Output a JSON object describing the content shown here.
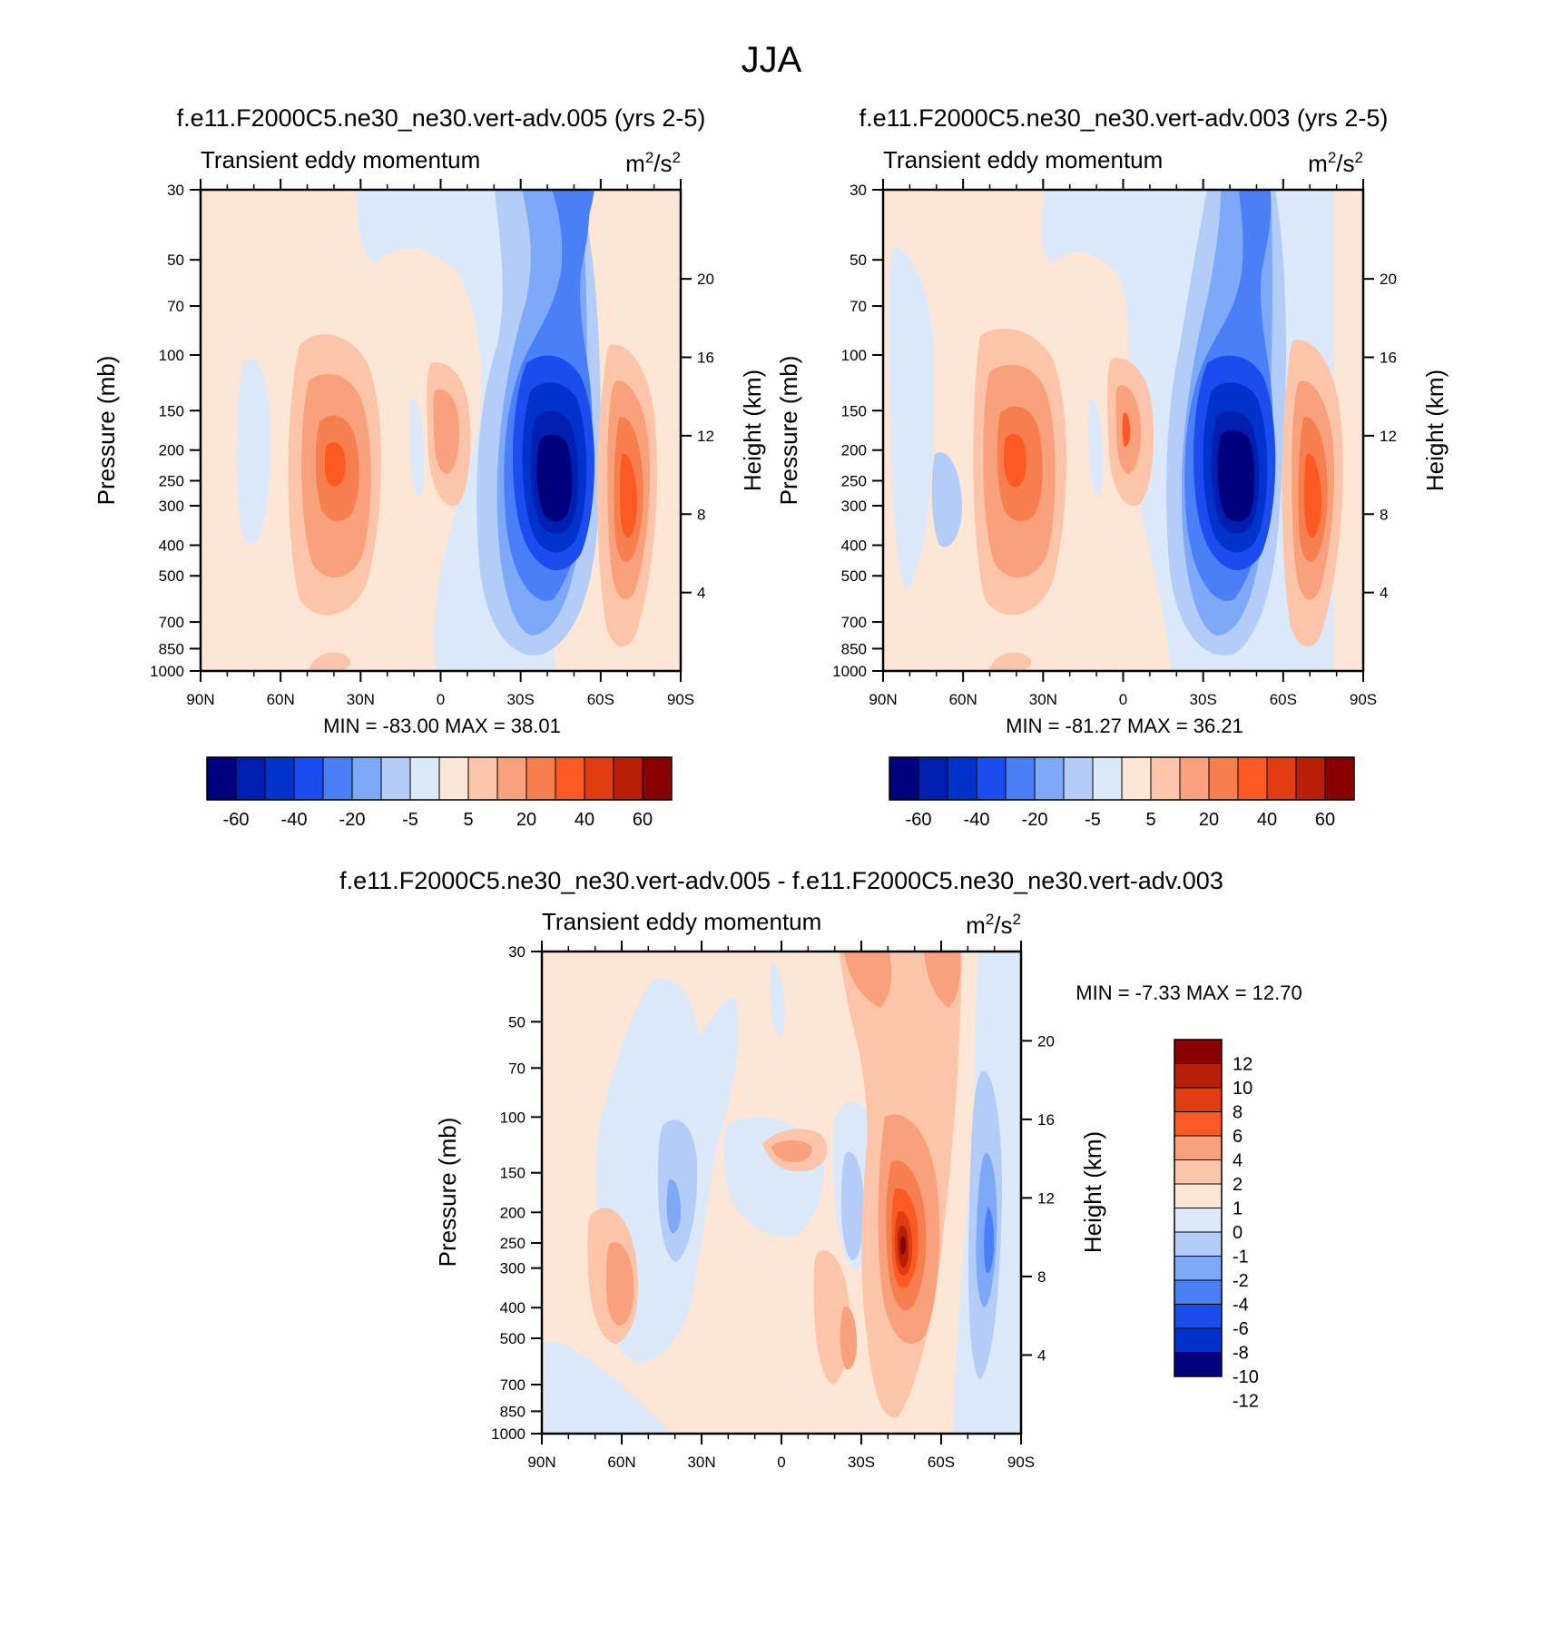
{
  "figure_title": "JJA",
  "chart_data": [
    {
      "type": "contour",
      "case_title": "f.e11.F2000C5.ne30_ne30.vert-adv.005 (yrs 2-5)",
      "left_label": "Transient eddy momentum",
      "units_base": "m",
      "units_exp1": "2",
      "units_mid": "/s",
      "units_exp2": "2",
      "ylabel": "Pressure (mb)",
      "ylabel_right": "Height (km)",
      "xticks": [
        "90N",
        "60N",
        "30N",
        "0",
        "30S",
        "60S",
        "90S"
      ],
      "yticks": [
        "30",
        "50",
        "70",
        "100",
        "150",
        "200",
        "250",
        "300",
        "400",
        "500",
        "700",
        "850",
        "1000"
      ],
      "height_ticks": [
        "20",
        "16",
        "12",
        "8",
        "4"
      ],
      "min_max": "MIN = -83.00  MAX =  38.01",
      "min": -83.0,
      "max": 38.01,
      "colorbar_labels": [
        "-60",
        "-40",
        "-20",
        "-5",
        "5",
        "20",
        "40",
        "60"
      ]
    },
    {
      "type": "contour",
      "case_title": "f.e11.F2000C5.ne30_ne30.vert-adv.003 (yrs 2-5)",
      "left_label": "Transient eddy momentum",
      "units_base": "m",
      "units_exp1": "2",
      "units_mid": "/s",
      "units_exp2": "2",
      "ylabel": "Pressure (mb)",
      "ylabel_right": "Height (km)",
      "xticks": [
        "90N",
        "60N",
        "30N",
        "0",
        "30S",
        "60S",
        "90S"
      ],
      "yticks": [
        "30",
        "50",
        "70",
        "100",
        "150",
        "200",
        "250",
        "300",
        "400",
        "500",
        "700",
        "850",
        "1000"
      ],
      "height_ticks": [
        "20",
        "16",
        "12",
        "8",
        "4"
      ],
      "min_max": "MIN = -81.27  MAX =  36.21",
      "min": -81.27,
      "max": 36.21,
      "colorbar_labels": [
        "-60",
        "-40",
        "-20",
        "-5",
        "5",
        "20",
        "40",
        "60"
      ]
    },
    {
      "type": "contour",
      "case_title": "f.e11.F2000C5.ne30_ne30.vert-adv.005 - f.e11.F2000C5.ne30_ne30.vert-adv.003",
      "left_label": "Transient eddy momentum",
      "units_base": "m",
      "units_exp1": "2",
      "units_mid": "/s",
      "units_exp2": "2",
      "ylabel": "Pressure (mb)",
      "ylabel_right": "Height (km)",
      "xticks": [
        "90N",
        "60N",
        "30N",
        "0",
        "30S",
        "60S",
        "90S"
      ],
      "yticks": [
        "30",
        "50",
        "70",
        "100",
        "150",
        "200",
        "250",
        "300",
        "400",
        "500",
        "700",
        "850",
        "1000"
      ],
      "height_ticks": [
        "20",
        "16",
        "12",
        "8",
        "4"
      ],
      "min_max": "MIN =  -7.33  MAX =  12.70",
      "min": -7.33,
      "max": 12.7,
      "colorbar_labels": [
        "12",
        "10",
        "8",
        "6",
        "4",
        "2",
        "1",
        "0",
        "-1",
        "-2",
        "-4",
        "-6",
        "-8",
        "-10",
        "-12"
      ]
    }
  ],
  "palette": {
    "c16": [
      "#00007f",
      "#001eb0",
      "#0033cc",
      "#1a4cf0",
      "#4a7ff8",
      "#7ea8f8",
      "#b4ccf8",
      "#dce9fa",
      "#fde6d6",
      "#fcc4a8",
      "#f9a07c",
      "#f77e4e",
      "#fc5a22",
      "#e03c10",
      "#b72006",
      "#880000"
    ],
    "c14": [
      "#880000",
      "#b72006",
      "#e03c10",
      "#fc5a22",
      "#f9a07c",
      "#fcc4a8",
      "#fde6d6",
      "#dce9fa",
      "#b4ccf8",
      "#7ea8f8",
      "#4a7ff8",
      "#1a4cf0",
      "#0033cc",
      "#00007f"
    ]
  }
}
